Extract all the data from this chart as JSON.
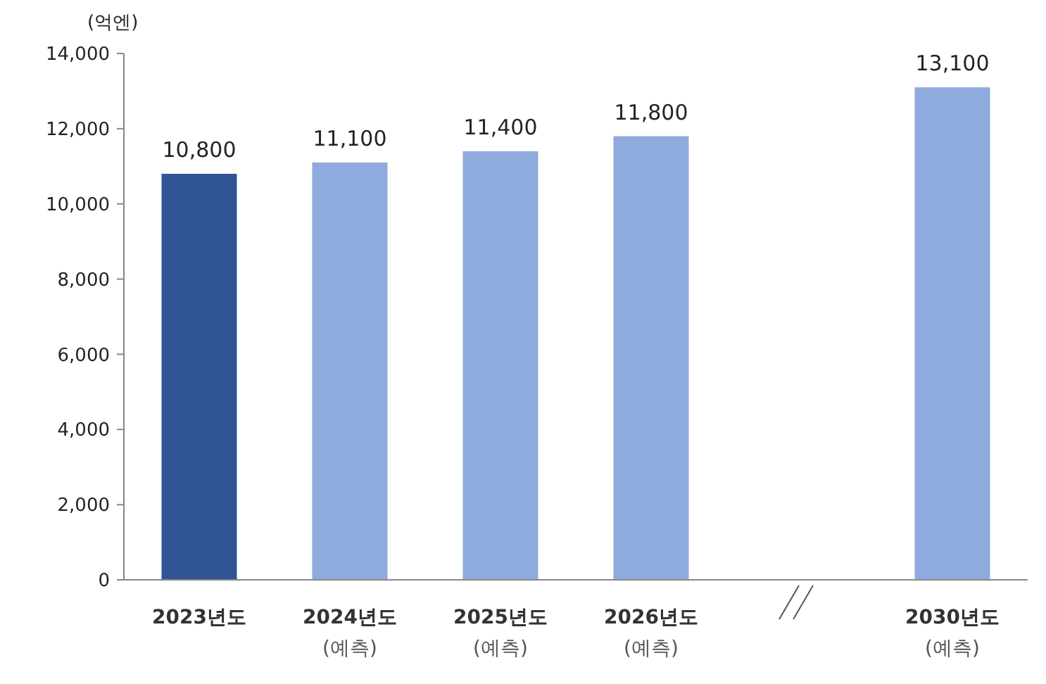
{
  "chart_data": {
    "type": "bar",
    "ylabel": "(억엔)",
    "categories": [
      "2023년도",
      "2024년도\n(예측)",
      "2025년도\n(예측)",
      "2026년도\n(예측)",
      null,
      "2030년도\n(예측)"
    ],
    "values": [
      10800,
      11100,
      11400,
      11800,
      null,
      13100
    ],
    "colors": [
      "#2f5597",
      "#8faadc",
      "#8faadc",
      "#8faadc",
      null,
      "#8faadc"
    ],
    "ylim": [
      0,
      14000
    ],
    "yticks": [
      {
        "value": 0,
        "label": "0"
      },
      {
        "value": 2000,
        "label": "2,000"
      },
      {
        "value": 4000,
        "label": "4,000"
      },
      {
        "value": 6000,
        "label": "6,000"
      },
      {
        "value": 8000,
        "label": "8,000"
      },
      {
        "value": 10000,
        "label": "10,000"
      },
      {
        "value": 12000,
        "label": "12,000"
      },
      {
        "value": 14000,
        "label": "14,000"
      }
    ],
    "value_labels": [
      "10,800",
      "11,100",
      "11,400",
      "11,800",
      null,
      "13,100"
    ],
    "grid": false
  }
}
